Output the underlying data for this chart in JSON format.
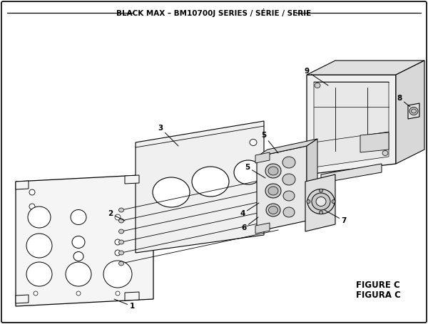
{
  "title": "BLACK MAX – BM10700J SERIES / SÉRIE / SERIE",
  "figure_label": "FIGURE C",
  "figura_label": "FIGURA C",
  "bg_color": "#ffffff",
  "line_color": "#000000",
  "title_fontsize": 7.5,
  "label_fontsize": 7.5,
  "figure_label_fontsize": 8.5
}
